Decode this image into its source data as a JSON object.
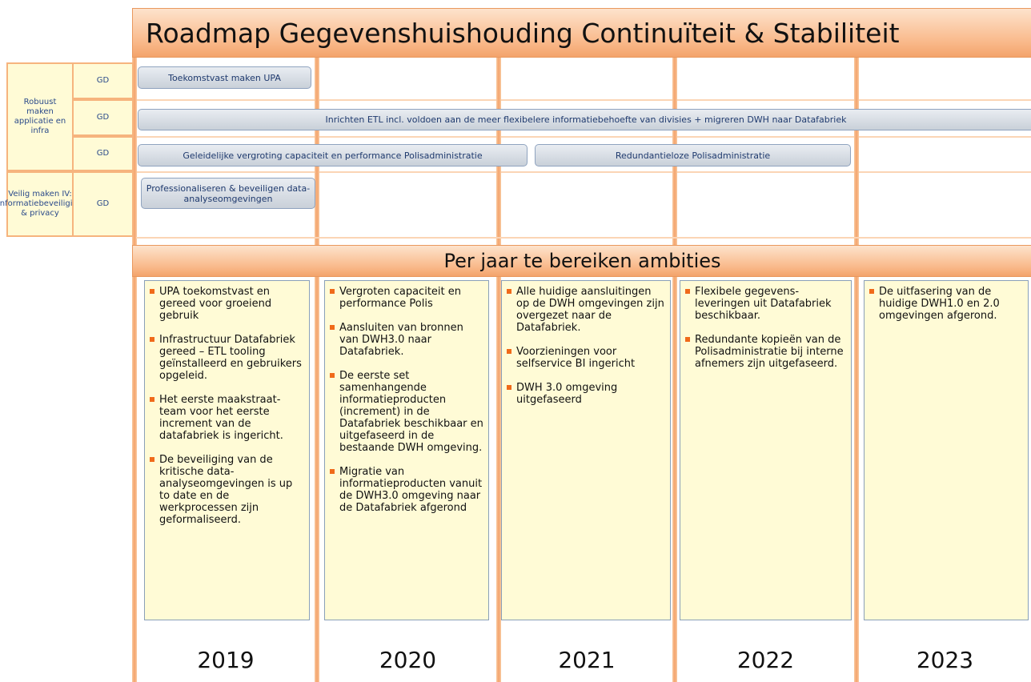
{
  "header": {
    "title": "Roadmap Gegevenshuishouding Continuïteit & Stabiliteit"
  },
  "groups": [
    {
      "label": "Robuust maken applicatie en infra",
      "rows": [
        "GD",
        "GD",
        "GD"
      ]
    },
    {
      "label": "Veilig maken IV: Informatiebeveiliging & privacy",
      "rows": [
        "GD"
      ]
    }
  ],
  "bars": [
    {
      "label": "Toekomstvast maken UPA"
    },
    {
      "label": "Inrichten ETL incl.  voldoen aan de meer flexibelere informatiebehoefte van divisies + migreren DWH naar Datafabriek"
    },
    {
      "label": "Geleidelijke vergroting capaciteit en performance Polisadministratie"
    },
    {
      "label": "Redundantieloze Polisadministratie"
    },
    {
      "label": "Professionaliseren & beveiligen data-analyseomgevingen"
    }
  ],
  "ambitions": {
    "title": "Per jaar te bereiken ambities",
    "columns": [
      {
        "year": "2019",
        "items": [
          "UPA toekomstvast en gereed voor groeiend gebruik",
          "Infrastructuur Datafabriek gereed – ETL tooling geïnstalleerd en gebruikers opgeleid.",
          "Het eerste maakstraat-team voor het eerste increment van de datafabriek is ingericht.",
          "De beveiliging van de kritische data-analyseomgevingen is up to date en de werkprocessen zijn geformaliseerd."
        ]
      },
      {
        "year": "2020",
        "items": [
          "Vergroten capaciteit en performance Polis",
          "Aansluiten van bronnen van DWH3.0 naar Datafabriek.",
          "De eerste set samenhangende informatieproducten (increment) in de Datafabriek beschikbaar en uitgefaseerd in de bestaande DWH omgeving.",
          "Migratie van informatieproducten vanuit de DWH3.0 omgeving naar de Datafabriek afgerond"
        ]
      },
      {
        "year": "2021",
        "items": [
          "Alle huidige aansluitingen op de DWH omgevingen zijn overgezet naar de Datafabriek.",
          "Voorzieningen voor selfservice BI ingericht",
          "DWH 3.0 omgeving uitgefaseerd"
        ]
      },
      {
        "year": "2022",
        "items": [
          "Flexibele gegevens-leveringen uit Datafabriek beschikbaar.",
          "Redundante kopieën van de Polisadministratie bij interne afnemers zijn uitgefaseerd."
        ]
      },
      {
        "year": "2023",
        "items": [
          "De uitfasering van de huidige DWH1.0 en 2.0 omgevingen afgerond."
        ]
      }
    ]
  }
}
